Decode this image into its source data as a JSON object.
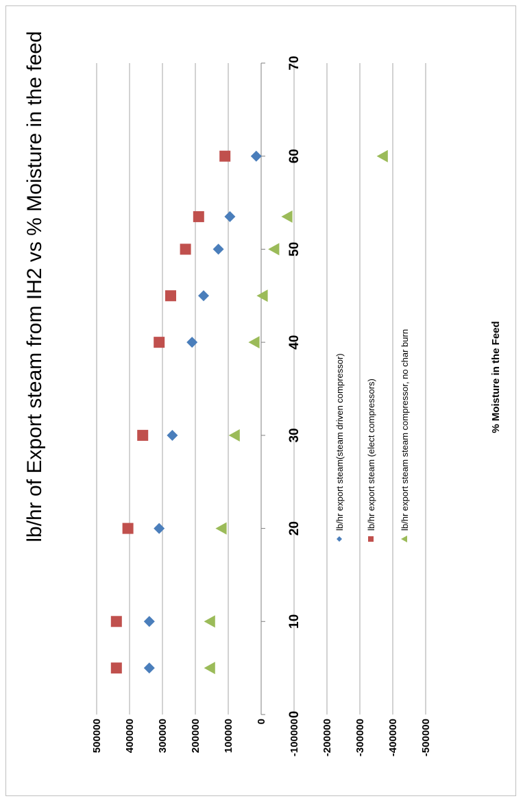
{
  "chart_data": {
    "type": "scatter",
    "title": "lb/hr of Export steam from IH2 vs % Moisture in the feed",
    "xlabel": "% Moisture in the Feed",
    "ylabel": "",
    "xlim": [
      0,
      70
    ],
    "ylim": [
      -500000,
      500000
    ],
    "x_ticks": [
      0,
      10,
      20,
      30,
      40,
      50,
      60,
      70
    ],
    "y_ticks": [
      500000,
      400000,
      300000,
      200000,
      100000,
      0,
      -100000,
      -200000,
      -300000,
      -400000,
      -500000
    ],
    "x_tick_labels": [
      "0",
      "10",
      "20",
      "30",
      "40",
      "50",
      "60",
      "70"
    ],
    "y_tick_labels": [
      "500000",
      "400000",
      "300000",
      "200000",
      "100000",
      "0",
      "-100000",
      "-200000",
      "-300000",
      "-400000",
      "-500000"
    ],
    "grid": true,
    "orientation": "rotated-90-ccw",
    "legend_position": "inside-center",
    "series": [
      {
        "name": "lb/hr export steam(steam driven compressor)",
        "marker": "diamond",
        "color": "#4a7ebb",
        "x": [
          5,
          10,
          20,
          30,
          40,
          45,
          50,
          53.5,
          60
        ],
        "y": [
          340000,
          340000,
          310000,
          270000,
          210000,
          175000,
          130000,
          95000,
          15000
        ]
      },
      {
        "name": "lb/hr export steam (elect compressors)",
        "marker": "square",
        "color": "#c0504d",
        "x": [
          5,
          10,
          20,
          30,
          40,
          45,
          50,
          53.5,
          60
        ],
        "y": [
          440000,
          440000,
          405000,
          360000,
          310000,
          275000,
          230000,
          190000,
          110000
        ]
      },
      {
        "name": "lb/hr export steam steam compressor, no char burn",
        "marker": "triangle",
        "color": "#9bbb59",
        "x": [
          5,
          10,
          20,
          30,
          40,
          45,
          50,
          53.5,
          60
        ],
        "y": [
          155000,
          155000,
          120000,
          80000,
          20000,
          -5000,
          -40000,
          -80000,
          -370000
        ]
      }
    ]
  }
}
